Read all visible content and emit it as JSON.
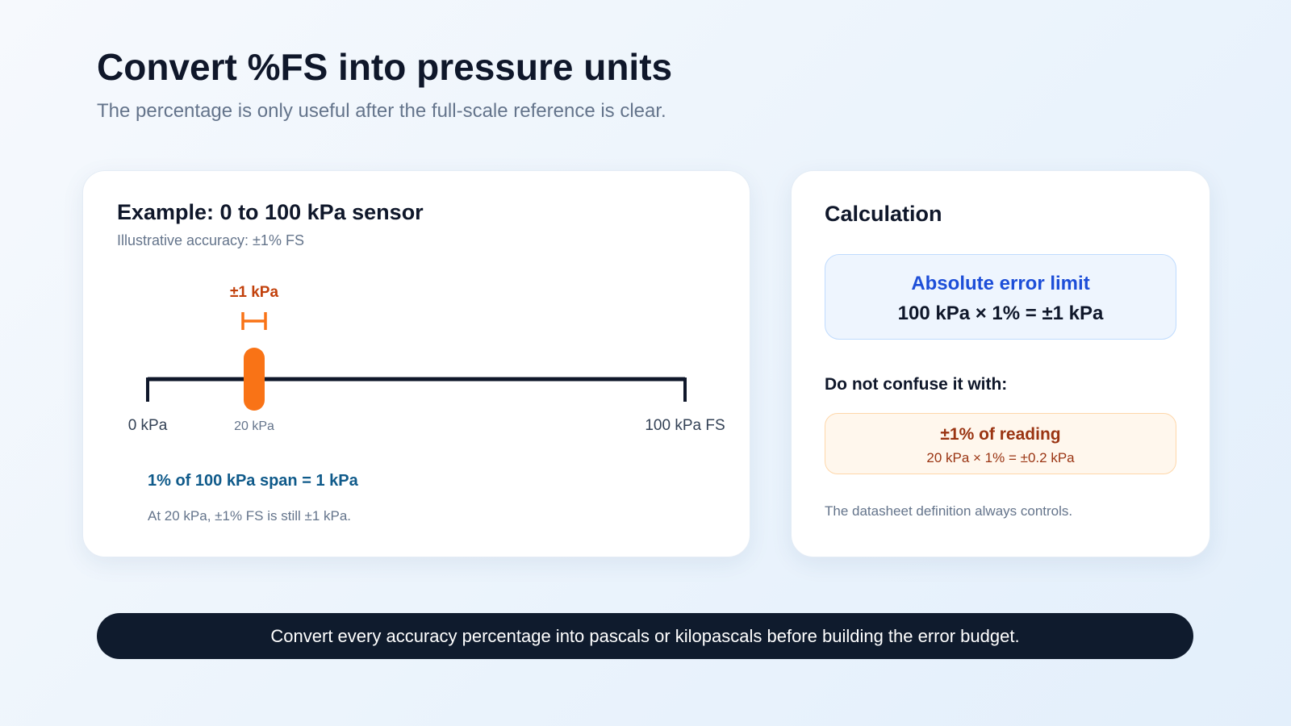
{
  "header": {
    "title": "Convert %FS into pressure units",
    "subtitle": "The percentage is only useful after the full-scale reference is clear."
  },
  "example": {
    "title": "Example: 0 to 100 kPa sensor",
    "note": "Illustrative accuracy: ±1% FS",
    "error_label": "±1 kPa",
    "scale_labels": [
      "0 kPa",
      "20 kPa",
      "100 kPa FS"
    ],
    "span_text": "1% of 100 kPa span = 1 kPa",
    "span_note": "At 20 kPa, ±1% FS is still ±1 kPa."
  },
  "calculation": {
    "title": "Calculation",
    "box": {
      "title": "Absolute error limit",
      "formula": "100 kPa × 1% = ±1 kPa"
    },
    "confuse_heading": "Do not confuse it with:",
    "alt": {
      "title": "±1% of reading",
      "formula": "20 kPa × 1% = ±0.2 kPa"
    },
    "footnote": "The datasheet definition always controls."
  },
  "footer": "Convert every accuracy percentage into pascals or kilopascals before building the error budget."
}
